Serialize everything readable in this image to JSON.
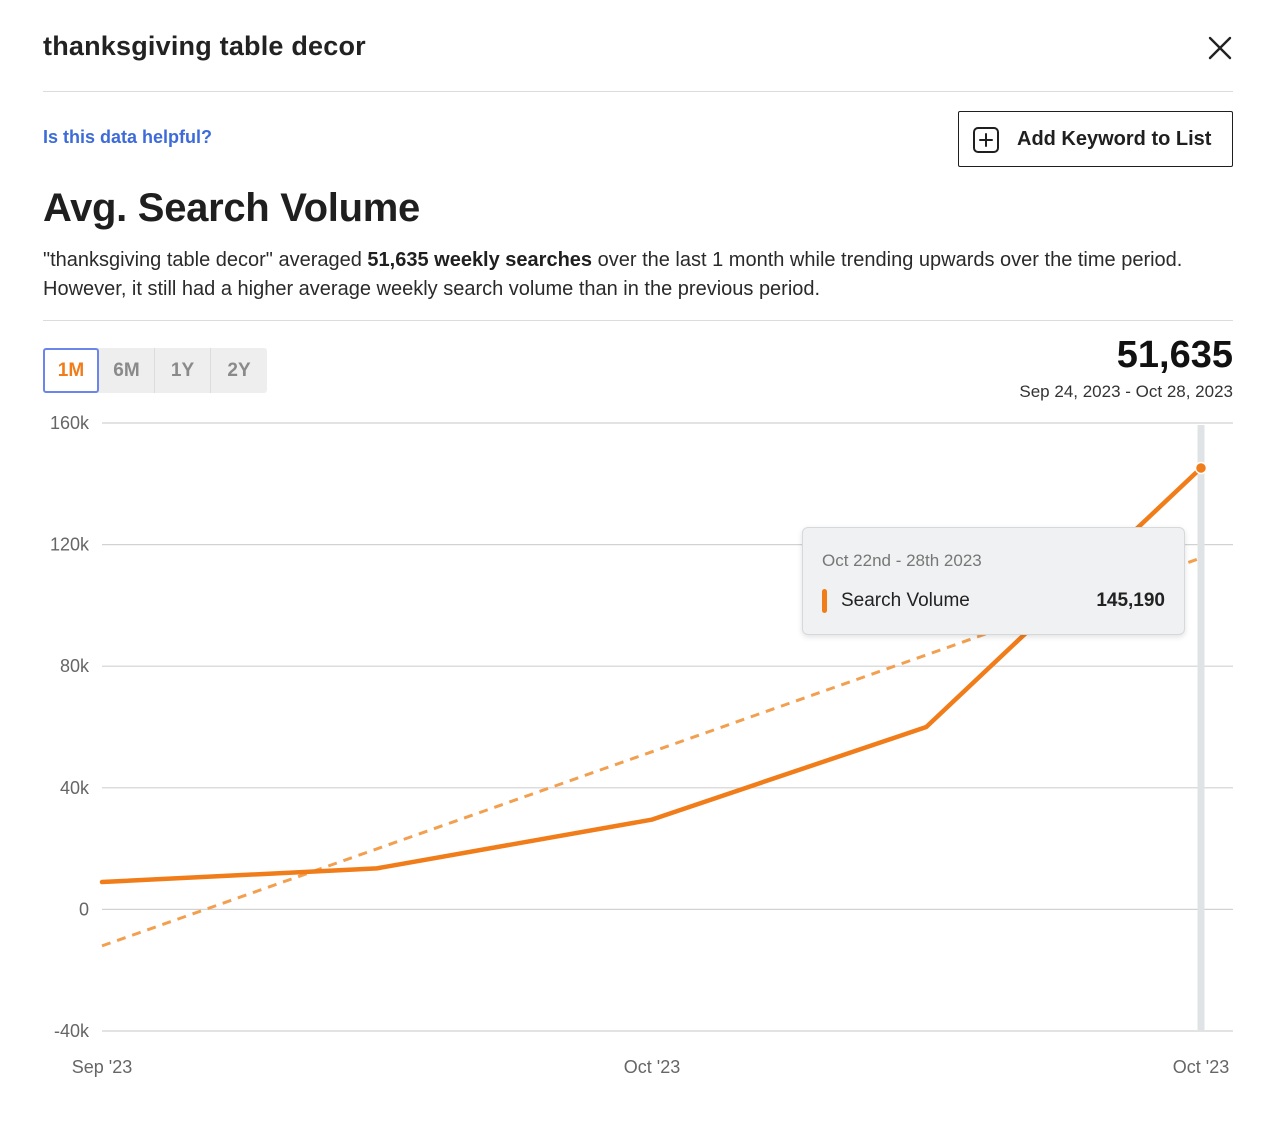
{
  "header": {
    "title": "thanksgiving table decor"
  },
  "actions": {
    "helpful_link": "Is this data helpful?",
    "add_keyword": "Add Keyword to List"
  },
  "section": {
    "title": "Avg. Search Volume",
    "summary_prefix": "\"thanksgiving table decor\" averaged ",
    "summary_bold": "51,635 weekly searches",
    "summary_suffix": " over the last 1 month while trending upwards over the time period. However, it still had a higher average weekly search volume than in the previous period."
  },
  "range_tabs": [
    {
      "label": "1M",
      "active": true
    },
    {
      "label": "6M",
      "active": false
    },
    {
      "label": "1Y",
      "active": false
    },
    {
      "label": "2Y",
      "active": false
    }
  ],
  "stats": {
    "value": "51,635",
    "date_range": "Sep 24, 2023 - Oct 28, 2023"
  },
  "tooltip": {
    "date": "Oct 22nd - 28th 2023",
    "series": "Search Volume",
    "value": "145,190"
  },
  "colors": {
    "line": "#f07d1a",
    "trend": "#f2a04f",
    "accent": "#6b86e8",
    "link": "#3d6bd9"
  },
  "chart_data": {
    "type": "line",
    "title": "Avg. Search Volume",
    "x_tick_labels": [
      "Sep '23",
      "Oct '23",
      "Oct '23"
    ],
    "ylim": [
      -40000,
      160000
    ],
    "y_ticks": [
      -40000,
      0,
      40000,
      80000,
      120000,
      160000
    ],
    "y_tick_labels": [
      "-40k",
      "0",
      "40k",
      "80k",
      "120k",
      "160k"
    ],
    "grid": true,
    "series": [
      {
        "name": "Search Volume",
        "x": [
          "2023-09-24",
          "2023-10-01",
          "2023-10-08",
          "2023-10-15",
          "2023-10-22"
        ],
        "values": [
          9000,
          13500,
          29500,
          60000,
          145190
        ]
      },
      {
        "style": "dashed trend",
        "x": [
          "2023-09-24",
          "2023-10-22"
        ],
        "values": [
          -12000,
          115600
        ]
      }
    ],
    "highlight_index": 4
  }
}
